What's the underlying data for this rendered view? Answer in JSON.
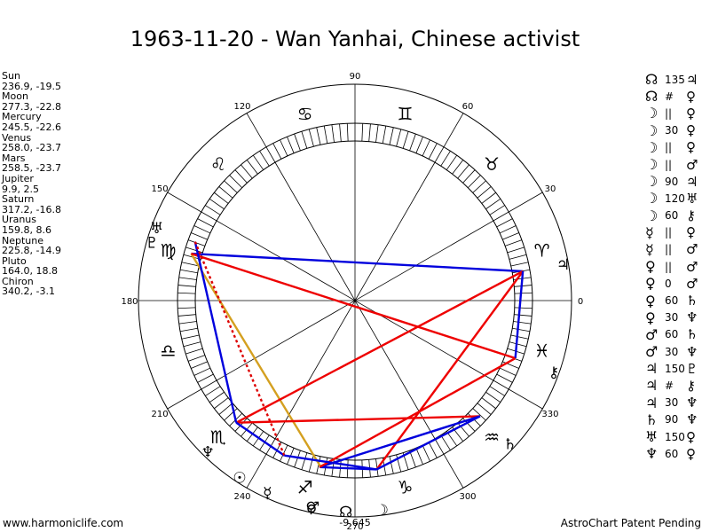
{
  "title": "1963-11-20 - Wan Yanhai, Chinese activist",
  "planets": [
    {
      "name": "Sun",
      "coords": "236.9, -19.5"
    },
    {
      "name": "Moon",
      "coords": "277.3, -22.8"
    },
    {
      "name": "Mercury",
      "coords": "245.5, -22.6"
    },
    {
      "name": "Venus",
      "coords": "258.0, -23.7"
    },
    {
      "name": "Mars",
      "coords": "258.5, -23.7"
    },
    {
      "name": "Jupiter",
      "coords": "9.9, 2.5"
    },
    {
      "name": "Saturn",
      "coords": "317.2, -16.8"
    },
    {
      "name": "Uranus",
      "coords": "159.8, 8.6"
    },
    {
      "name": "Neptune",
      "coords": "225.8, -14.9"
    },
    {
      "name": "Pluto",
      "coords": "164.0, 18.8"
    },
    {
      "name": "Chiron",
      "coords": "340.2, -3.1"
    }
  ],
  "aspects": [
    {
      "p1": "☊",
      "mid": "135",
      "p2": "♃"
    },
    {
      "p1": "☊",
      "mid": "#",
      "p2": "♀"
    },
    {
      "p1": "☽",
      "mid": "||",
      "p2": "♀"
    },
    {
      "p1": "☽",
      "mid": "30",
      "p2": "♀"
    },
    {
      "p1": "☽",
      "mid": "||",
      "p2": "♀"
    },
    {
      "p1": "☽",
      "mid": "||",
      "p2": "♂"
    },
    {
      "p1": "☽",
      "mid": "90",
      "p2": "♃"
    },
    {
      "p1": "☽",
      "mid": "120",
      "p2": "♅"
    },
    {
      "p1": "☽",
      "mid": "60",
      "p2": "⚷"
    },
    {
      "p1": "☿",
      "mid": "||",
      "p2": "♀"
    },
    {
      "p1": "☿",
      "mid": "||",
      "p2": "♂"
    },
    {
      "p1": "♀",
      "mid": "||",
      "p2": "♂"
    },
    {
      "p1": "♀",
      "mid": "0",
      "p2": "♂"
    },
    {
      "p1": "♀",
      "mid": "60",
      "p2": "♄"
    },
    {
      "p1": "♀",
      "mid": "30",
      "p2": "♆"
    },
    {
      "p1": "♂",
      "mid": "60",
      "p2": "♄"
    },
    {
      "p1": "♂",
      "mid": "30",
      "p2": "♆"
    },
    {
      "p1": "♃",
      "mid": "150",
      "p2": "♇"
    },
    {
      "p1": "♃",
      "mid": "#",
      "p2": "⚷"
    },
    {
      "p1": "♃",
      "mid": "30",
      "p2": "♆"
    },
    {
      "p1": "♄",
      "mid": "90",
      "p2": "♆"
    },
    {
      "p1": "♅",
      "mid": "150",
      "p2": "♀"
    },
    {
      "p1": "♆",
      "mid": "60",
      "p2": "♀"
    }
  ],
  "degree_labels": [
    "0",
    "30",
    "60",
    "90",
    "120",
    "150",
    "180",
    "210",
    "240",
    "270",
    "300",
    "330"
  ],
  "offset_label": "-9,645",
  "zodiac_glyphs": [
    "♈",
    "♓",
    "♒",
    "♑",
    "♐",
    "♏",
    "♎",
    "♍",
    "♌",
    "♋",
    "♊",
    "♉"
  ],
  "chart_planets": [
    {
      "glyph": "♃",
      "lon": 9.9
    },
    {
      "glyph": "⚷",
      "lon": 340.2
    },
    {
      "glyph": "♄",
      "lon": 317.2
    },
    {
      "glyph": "☽",
      "lon": 277.3
    },
    {
      "glyph": "☊",
      "lon": 267.5
    },
    {
      "glyph": "♀",
      "lon": 258.0
    },
    {
      "glyph": "♂",
      "lon": 258.5
    },
    {
      "glyph": "☿",
      "lon": 245.5
    },
    {
      "glyph": "☉",
      "lon": 236.9
    },
    {
      "glyph": "♆",
      "lon": 225.8
    },
    {
      "glyph": "♇",
      "lon": 164.0
    },
    {
      "glyph": "♅",
      "lon": 159.8
    }
  ],
  "footer_left": "www.harmoniclife.com",
  "footer_right": "AstroChart Patent Pending",
  "colors": {
    "red": "#ee0000",
    "blue": "#0000dd",
    "gold": "#d4a020",
    "dotted": "#dd0000"
  }
}
